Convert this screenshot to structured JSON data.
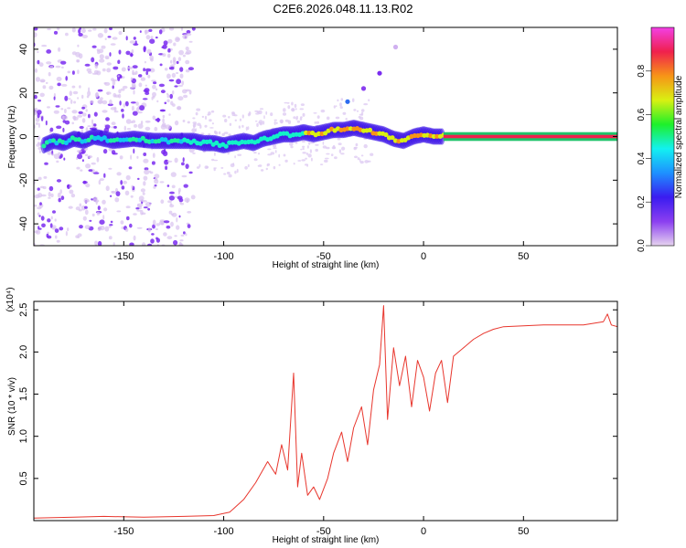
{
  "figure": {
    "title": "C2E6.2026.048.11.13.R02"
  },
  "chart_data": [
    {
      "type": "heatmap",
      "name": "spectrogram",
      "xlabel": "Height of straight line (km)",
      "ylabel": "Frequency (Hz)",
      "xlim": [
        -195,
        97
      ],
      "ylim": [
        -50,
        50
      ],
      "xticks": [
        -150,
        -100,
        -50,
        0,
        50
      ],
      "yticks": [
        -40,
        -20,
        0,
        20,
        40
      ],
      "ridge": [
        [
          -190,
          -4
        ],
        [
          -185,
          -2
        ],
        [
          -180,
          -3
        ],
        [
          -175,
          -1
        ],
        [
          -170,
          -2
        ],
        [
          -165,
          0
        ],
        [
          -160,
          -1
        ],
        [
          -155,
          -2
        ],
        [
          -145,
          -1
        ],
        [
          -135,
          -2
        ],
        [
          -120,
          -2
        ],
        [
          -115,
          -2
        ],
        [
          -110,
          -3
        ],
        [
          -105,
          -3
        ],
        [
          -100,
          -4
        ],
        [
          -95,
          -3
        ],
        [
          -90,
          -2
        ],
        [
          -85,
          -3
        ],
        [
          -80,
          -1
        ],
        [
          -75,
          0
        ],
        [
          -70,
          1
        ],
        [
          -65,
          1
        ],
        [
          -60,
          2
        ],
        [
          -55,
          1
        ],
        [
          -50,
          2
        ],
        [
          -45,
          3
        ],
        [
          -40,
          3
        ],
        [
          -35,
          4
        ],
        [
          -30,
          3
        ],
        [
          -25,
          2
        ],
        [
          -20,
          1
        ],
        [
          -15,
          -1
        ],
        [
          -10,
          -2
        ],
        [
          -5,
          0
        ],
        [
          0,
          1
        ],
        [
          5,
          0
        ],
        [
          10,
          0
        ],
        [
          95,
          0
        ]
      ],
      "colorbar": {
        "label": "Normalized spectral amplitude",
        "ticks": [
          0.0,
          0.2,
          0.4,
          0.6,
          0.8
        ],
        "range": [
          0,
          1
        ],
        "colors": [
          "#e6d3ef",
          "#8b3ff0",
          "#3a1cf0",
          "#1e90ff",
          "#12f1f1",
          "#1ef02a",
          "#d9f012",
          "#f79417",
          "#f0204d",
          "#f240e6"
        ]
      }
    },
    {
      "type": "line",
      "name": "snr",
      "xlabel": "Height of straight line (km)",
      "ylabel": "SNR (10 * v/v)",
      "multiplier": "(x10⁴)",
      "xlim": [
        -195,
        97
      ],
      "ylim": [
        0,
        2.6
      ],
      "xticks": [
        -150,
        -100,
        -50,
        0,
        50
      ],
      "yticks": [
        0.5,
        1.0,
        1.5,
        2.0,
        2.5
      ],
      "color": "#e8362d",
      "x": [
        -195,
        -175,
        -160,
        -140,
        -120,
        -105,
        -97,
        -90,
        -84,
        -78,
        -74,
        -71,
        -68,
        -65,
        -63,
        -61,
        -58,
        -55,
        -52,
        -48,
        -45,
        -41,
        -38,
        -35,
        -31,
        -28,
        -25,
        -22,
        -20,
        -18,
        -15,
        -12,
        -9,
        -6,
        -3,
        0,
        3,
        6,
        9,
        12,
        15,
        20,
        25,
        30,
        35,
        40,
        50,
        60,
        70,
        80,
        90,
        92,
        94,
        97
      ],
      "y": [
        0.03,
        0.04,
        0.05,
        0.04,
        0.05,
        0.06,
        0.1,
        0.25,
        0.45,
        0.7,
        0.55,
        0.9,
        0.6,
        1.75,
        0.4,
        0.8,
        0.3,
        0.4,
        0.25,
        0.5,
        0.8,
        1.05,
        0.7,
        1.1,
        1.35,
        0.9,
        1.55,
        1.85,
        2.55,
        1.2,
        2.05,
        1.6,
        1.95,
        1.35,
        1.9,
        1.7,
        1.3,
        1.75,
        1.9,
        1.4,
        1.95,
        2.05,
        2.15,
        2.22,
        2.27,
        2.3,
        2.31,
        2.32,
        2.32,
        2.32,
        2.36,
        2.45,
        2.32,
        2.3
      ]
    }
  ]
}
